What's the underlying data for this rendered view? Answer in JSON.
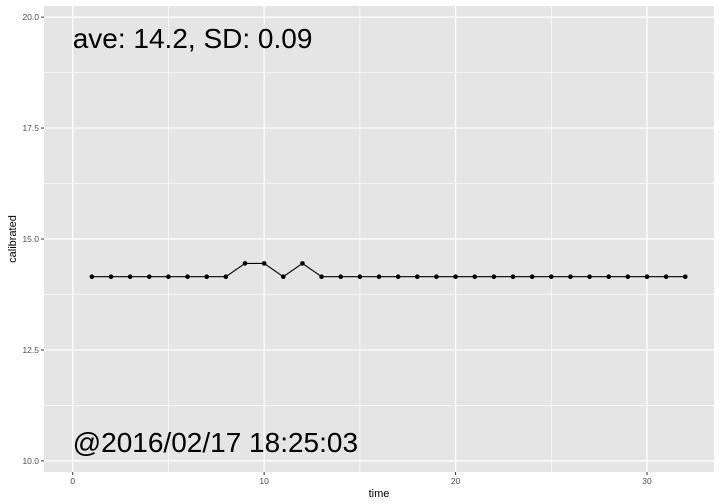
{
  "chart_data": {
    "type": "line",
    "xlabel": "time",
    "ylabel": "calibrated",
    "xlim": [
      -1.5,
      33.5
    ],
    "ylim": [
      9.75,
      20.25
    ],
    "x_ticks": [
      0,
      10,
      20,
      30
    ],
    "y_ticks": [
      10.0,
      12.5,
      15.0,
      17.5,
      20.0
    ],
    "y_tick_labels": [
      "10.0",
      "12.5",
      "15.0",
      "17.5",
      "20.0"
    ],
    "grid": true,
    "series": [
      {
        "x": [
          1,
          2,
          3,
          4,
          5,
          6,
          7,
          8,
          9,
          10,
          11,
          12,
          13,
          14,
          15,
          16,
          17,
          18,
          19,
          20,
          21,
          22,
          23,
          24,
          25,
          26,
          27,
          28,
          29,
          30,
          31,
          32
        ],
        "values": [
          14.15,
          14.15,
          14.15,
          14.15,
          14.15,
          14.15,
          14.15,
          14.15,
          14.45,
          14.45,
          14.15,
          14.45,
          14.15,
          14.15,
          14.15,
          14.15,
          14.15,
          14.15,
          14.15,
          14.15,
          14.15,
          14.15,
          14.15,
          14.15,
          14.15,
          14.15,
          14.15,
          14.15,
          14.15,
          14.15,
          14.15,
          14.15
        ]
      }
    ],
    "annotations": [
      "ave: 14.2, SD: 0.09",
      "@2016/02/17 18:25:03"
    ],
    "colors": {
      "panel": "#e5e5e5",
      "grid": "#ffffff",
      "line": "#000000"
    }
  }
}
